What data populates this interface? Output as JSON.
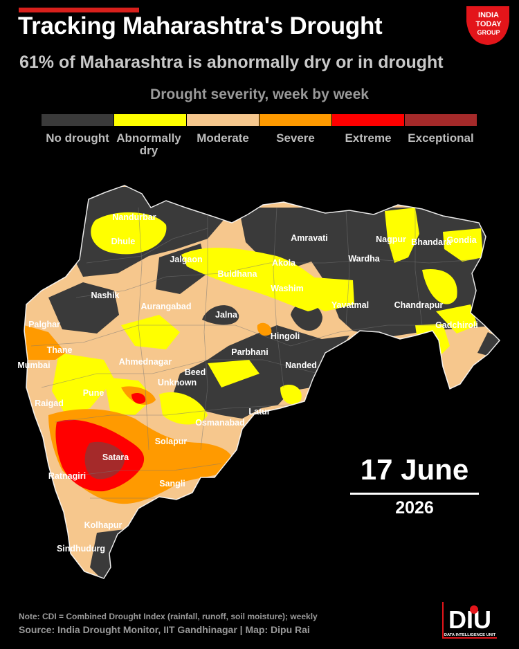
{
  "header": {
    "title": "Tracking Maharashtra's Drought",
    "subtitle": "61% of Maharashtra is abnormally dry or in drought"
  },
  "legend": {
    "title": "Drought severity, week by week",
    "items": [
      {
        "label": "No drought",
        "color": "#3a3a3a"
      },
      {
        "label": "Abnormally dry",
        "color": "#ffff00"
      },
      {
        "label": "Moderate",
        "color": "#f6c78d"
      },
      {
        "label": "Severe",
        "color": "#ff9a00"
      },
      {
        "label": "Extreme",
        "color": "#ff0000"
      },
      {
        "label": "Exceptional",
        "color": "#a52a2a"
      }
    ]
  },
  "map": {
    "region": "Maharashtra",
    "cities": [
      "Nandurbar",
      "Dhule",
      "Jalgaon",
      "Amravati",
      "Nagpur",
      "Bhandara",
      "Gondia",
      "Akola",
      "Wardha",
      "Buldhana",
      "Washim",
      "Nashik",
      "Aurangabad",
      "Jalna",
      "Yavatmal",
      "Chandrapur",
      "Palghar",
      "Hingoli",
      "Gadchiroli",
      "Thane",
      "Parbhani",
      "Mumbai",
      "Ahmednagar",
      "Nanded",
      "Beed",
      "Unknown",
      "Pune",
      "Raigad",
      "Latur",
      "Osmanabad",
      "Solapur",
      "Satara",
      "Ratnagiri",
      "Sangli",
      "Kolhapur",
      "Sindhudurg"
    ]
  },
  "date": {
    "day": "17 June",
    "year": "2026"
  },
  "footer": {
    "note": "Note: CDI = Combined Drought Index (rainfall, runoff, soil moisture); weekly",
    "source": "Source: India Drought Monitor, IIT Gandhinagar | Map: Dipu Rai"
  },
  "logos": {
    "publisher": [
      "INDIA",
      "TODAY",
      "GROUP"
    ],
    "unit": [
      "DIU",
      "DATA INTELLIGENCE UNIT"
    ]
  }
}
